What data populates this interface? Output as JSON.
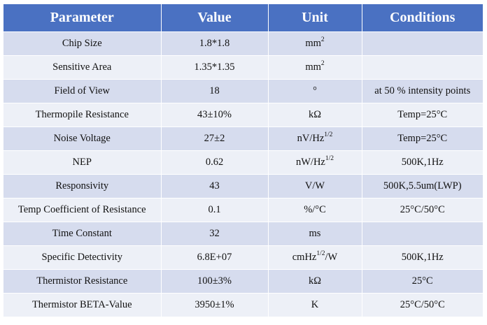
{
  "table": {
    "headers": [
      "Parameter",
      "Value",
      "Unit",
      "Conditions"
    ],
    "rows": [
      {
        "parameter": "Chip Size",
        "value": "1.8*1.8",
        "unit": "mm",
        "unit_sup": "2",
        "unit_after": "",
        "conditions": ""
      },
      {
        "parameter": "Sensitive Area",
        "value": "1.35*1.35",
        "unit": "mm",
        "unit_sup": "2",
        "unit_after": "",
        "conditions": ""
      },
      {
        "parameter": "Field of View",
        "value": "18",
        "unit": "°",
        "unit_sup": "",
        "unit_after": "",
        "conditions": "at 50 % intensity points"
      },
      {
        "parameter": "Thermopile Resistance",
        "value": "43±10%",
        "unit": "kΩ",
        "unit_sup": "",
        "unit_after": "",
        "conditions": "Temp=25°C"
      },
      {
        "parameter": "Noise Voltage",
        "value": "27±2",
        "unit": "nV/Hz",
        "unit_sup": "1/2",
        "unit_after": "",
        "conditions": "Temp=25°C"
      },
      {
        "parameter": "NEP",
        "value": "0.62",
        "unit": "nW/Hz",
        "unit_sup": "1/2",
        "unit_after": "",
        "conditions": "500K,1Hz"
      },
      {
        "parameter": "Responsivity",
        "value": "43",
        "unit": "V/W",
        "unit_sup": "",
        "unit_after": "",
        "conditions": "500K,5.5um(LWP)"
      },
      {
        "parameter": "Temp Coefficient of Resistance",
        "value": "0.1",
        "unit": "%/°C",
        "unit_sup": "",
        "unit_after": "",
        "conditions": "25°C/50°C"
      },
      {
        "parameter": "Time Constant",
        "value": "32",
        "unit": "ms",
        "unit_sup": "",
        "unit_after": "",
        "conditions": ""
      },
      {
        "parameter": "Specific Detectivity",
        "value": "6.8E+07",
        "unit": "cmHz",
        "unit_sup": "1/2",
        "unit_after": "/W",
        "conditions": "500K,1Hz"
      },
      {
        "parameter": "Thermistor Resistance",
        "value": "100±3%",
        "unit": "kΩ",
        "unit_sup": "",
        "unit_after": "",
        "conditions": "25°C"
      },
      {
        "parameter": "Thermistor BETA-Value",
        "value": "3950±1%",
        "unit": "K",
        "unit_sup": "",
        "unit_after": "",
        "conditions": "25°C/50°C"
      }
    ]
  },
  "colors": {
    "header_bg": "#4a71c2",
    "header_text": "#ffffff",
    "row_odd_bg": "#d6dcee",
    "row_even_bg": "#edf0f7"
  }
}
